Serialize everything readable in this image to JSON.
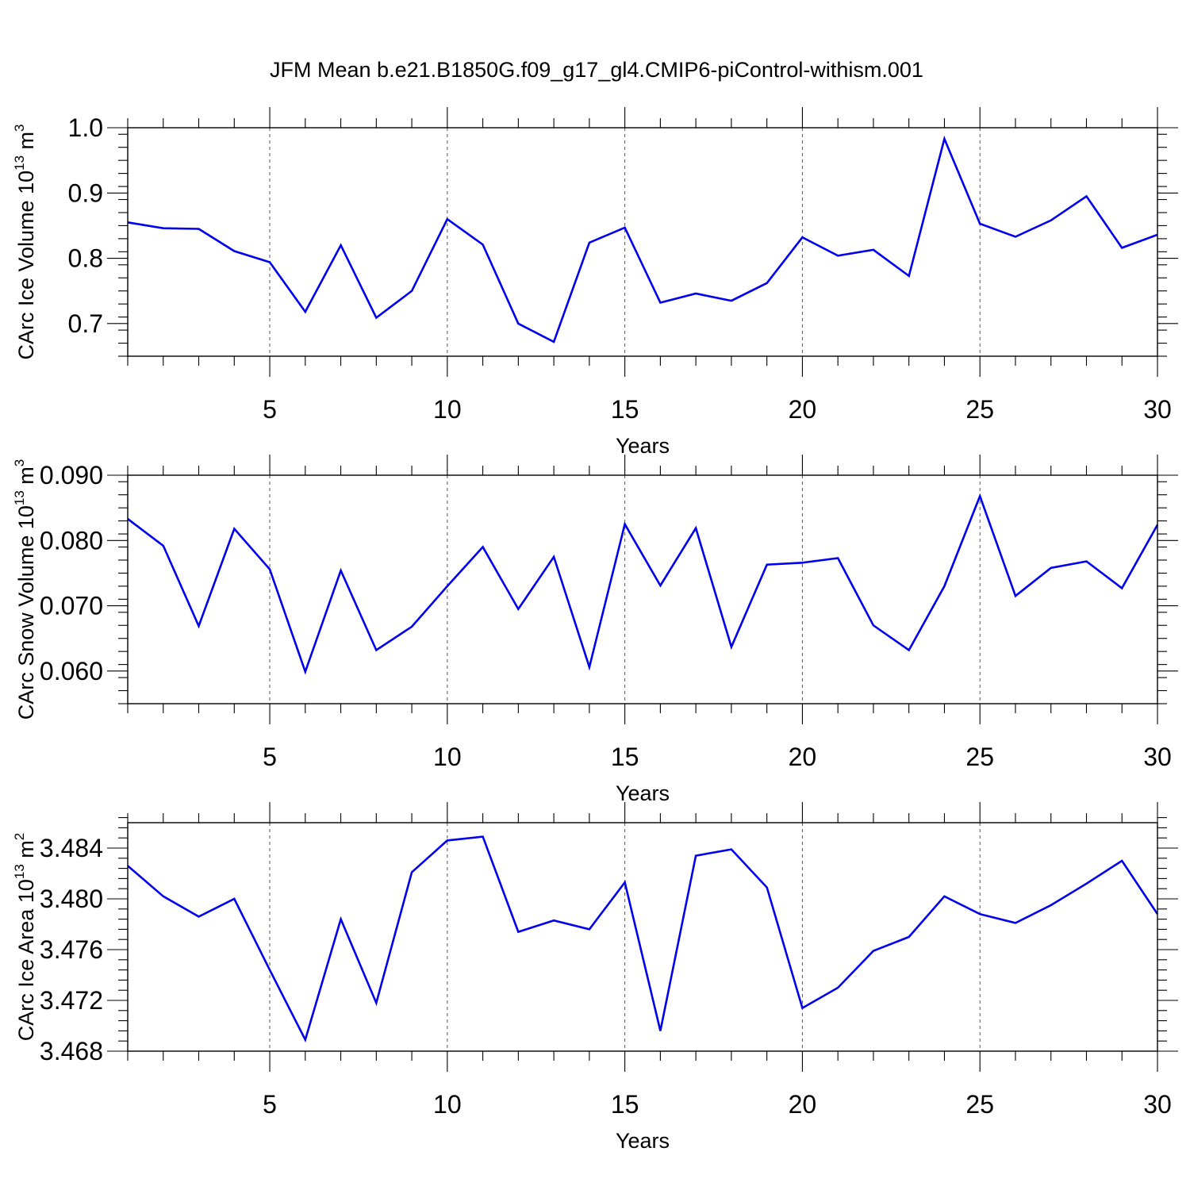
{
  "figure_title": "JFM Mean b.e21.B1850G.f09_g17_gl4.CMIP6-piControl-withism.001",
  "line_color": "#0000ee",
  "chart_data": [
    {
      "type": "line",
      "title": "JFM Mean b.e21.B1850G.f09_g17_gl4.CMIP6-piControl-withism.001",
      "ylabel_main": "CArc Ice Volume 10",
      "ylabel_exp": "13",
      "ylabel_unit": " m",
      "ylabel_unit_exp": "3",
      "xlabel": "Years",
      "xlim": [
        1,
        30
      ],
      "ylim": [
        0.65,
        1.0
      ],
      "xticks": [
        5,
        10,
        15,
        20,
        25,
        30
      ],
      "yticks": [
        0.7,
        0.8,
        0.9,
        1.0
      ],
      "ytick_labels": [
        "0.7",
        "0.8",
        "0.9",
        "1.0"
      ],
      "x": [
        1,
        2,
        3,
        4,
        5,
        6,
        7,
        8,
        9,
        10,
        11,
        12,
        13,
        14,
        15,
        16,
        17,
        18,
        19,
        20,
        21,
        22,
        23,
        24,
        25,
        26,
        27,
        28,
        29,
        30
      ],
      "y": [
        0.855,
        0.846,
        0.845,
        0.811,
        0.794,
        0.718,
        0.82,
        0.709,
        0.75,
        0.86,
        0.821,
        0.7,
        0.672,
        0.824,
        0.847,
        0.732,
        0.746,
        0.735,
        0.762,
        0.832,
        0.804,
        0.813,
        0.773,
        0.983,
        0.853,
        0.833,
        0.858,
        0.895,
        0.816,
        0.836
      ]
    },
    {
      "type": "line",
      "ylabel_main": "CArc Snow Volume 10",
      "ylabel_exp": "13",
      "ylabel_unit": " m",
      "ylabel_unit_exp": "3",
      "xlabel": "Years",
      "xlim": [
        1,
        30
      ],
      "ylim": [
        0.055,
        0.09
      ],
      "xticks": [
        5,
        10,
        15,
        20,
        25,
        30
      ],
      "yticks": [
        0.06,
        0.07,
        0.08,
        0.09
      ],
      "ytick_labels": [
        "0.060",
        "0.070",
        "0.080",
        "0.090"
      ],
      "x": [
        1,
        2,
        3,
        4,
        5,
        6,
        7,
        8,
        9,
        10,
        11,
        12,
        13,
        14,
        15,
        16,
        17,
        18,
        19,
        20,
        21,
        22,
        23,
        24,
        25,
        26,
        27,
        28,
        29,
        30
      ],
      "y": [
        0.0833,
        0.0792,
        0.0669,
        0.0818,
        0.0756,
        0.0599,
        0.0754,
        0.0632,
        0.0668,
        0.073,
        0.079,
        0.0695,
        0.0775,
        0.0606,
        0.0825,
        0.0731,
        0.0819,
        0.0637,
        0.0763,
        0.0766,
        0.0773,
        0.067,
        0.0632,
        0.073,
        0.0868,
        0.0715,
        0.0758,
        0.0768,
        0.0727,
        0.0824
      ]
    },
    {
      "type": "line",
      "ylabel_main": "CArc Ice Area 10",
      "ylabel_exp": "13",
      "ylabel_unit": " m",
      "ylabel_unit_exp": "2",
      "xlabel": "Years",
      "xlim": [
        1,
        30
      ],
      "ylim": [
        3.468,
        3.486
      ],
      "xticks": [
        5,
        10,
        15,
        20,
        25,
        30
      ],
      "yticks": [
        3.468,
        3.472,
        3.476,
        3.48,
        3.484
      ],
      "ytick_labels": [
        "3.468",
        "3.472",
        "3.476",
        "3.480",
        "3.484"
      ],
      "x": [
        1,
        2,
        3,
        4,
        5,
        6,
        7,
        8,
        9,
        10,
        11,
        12,
        13,
        14,
        15,
        16,
        17,
        18,
        19,
        20,
        21,
        22,
        23,
        24,
        25,
        26,
        27,
        28,
        29,
        30
      ],
      "y": [
        3.4826,
        3.4802,
        3.4786,
        3.48,
        3.4744,
        3.4689,
        3.4784,
        3.4718,
        3.4821,
        3.4846,
        3.4849,
        3.4774,
        3.4783,
        3.4776,
        3.4813,
        3.4696,
        3.4834,
        3.4839,
        3.4809,
        3.4714,
        3.473,
        3.4759,
        3.477,
        3.4802,
        3.4788,
        3.4781,
        3.4795,
        3.4812,
        3.483,
        3.4788
      ]
    }
  ]
}
